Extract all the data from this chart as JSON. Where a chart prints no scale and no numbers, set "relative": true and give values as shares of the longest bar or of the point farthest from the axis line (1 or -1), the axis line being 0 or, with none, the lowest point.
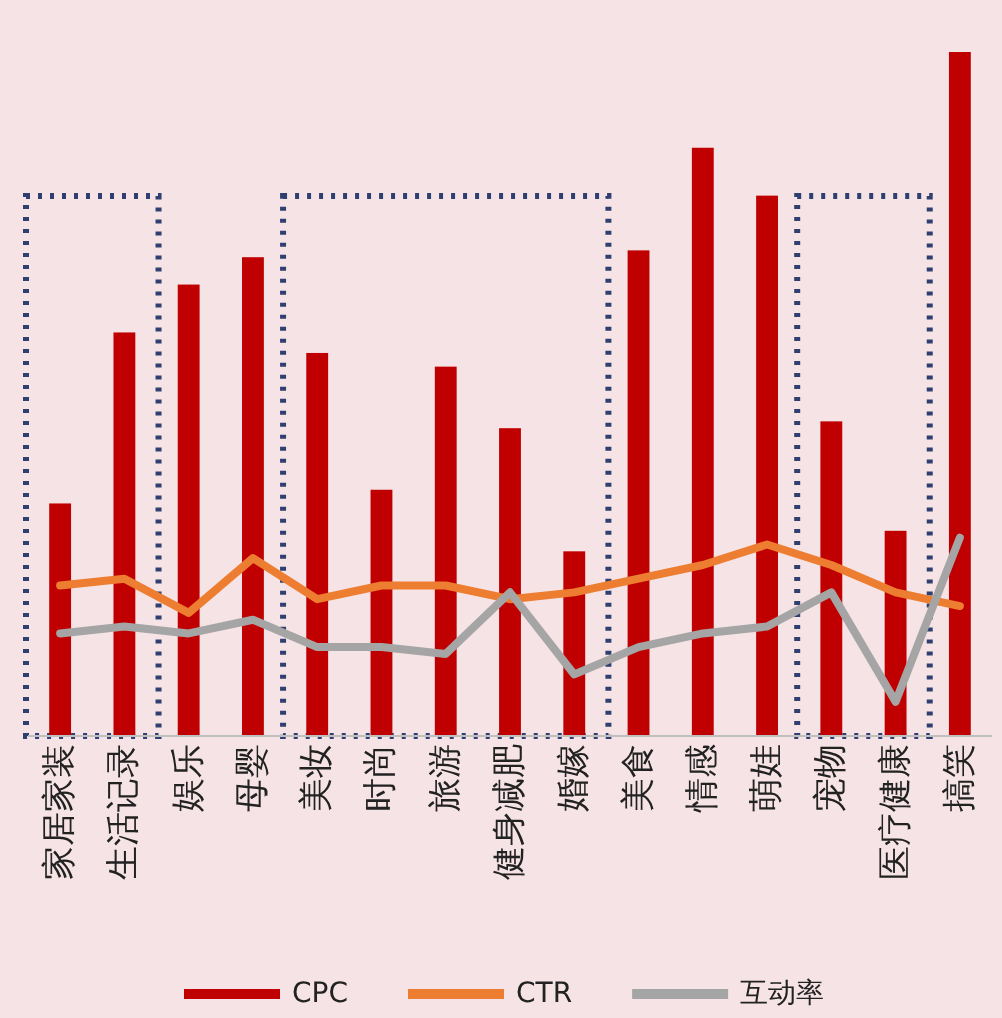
{
  "chart_data": {
    "type": "bar",
    "relative": true,
    "legend": "bottom",
    "categories": [
      "家居家装",
      "生活记录",
      "娱乐",
      "母婴",
      "美妆",
      "时尚",
      "旅游",
      "健身减肥",
      "婚嫁",
      "美食",
      "情感",
      "萌娃",
      "宠物",
      "医疗健康",
      "搞笑"
    ],
    "series": [
      {
        "name": "CPC",
        "color": "#c00000",
        "values": [
          0.34,
          0.59,
          0.66,
          0.7,
          0.56,
          0.36,
          0.54,
          0.45,
          0.27,
          0.71,
          0.86,
          0.79,
          0.46,
          0.3,
          1
        ]
      },
      {
        "name": "CTR",
        "type": "line",
        "color": "#ed7d31",
        "values": [
          0.22,
          0.23,
          0.18,
          0.26,
          0.2,
          0.22,
          0.22,
          0.2,
          0.21,
          0.23,
          0.25,
          0.28,
          0.25,
          0.21,
          0.19
        ]
      },
      {
        "name": "互动率",
        "type": "line",
        "color": "#a5a5a5",
        "values": [
          0.15,
          0.16,
          0.15,
          0.17,
          0.13,
          0.13,
          0.12,
          0.21,
          0.09,
          0.13,
          0.15,
          0.16,
          0.21,
          0.05,
          0.29
        ]
      }
    ]
  }
}
